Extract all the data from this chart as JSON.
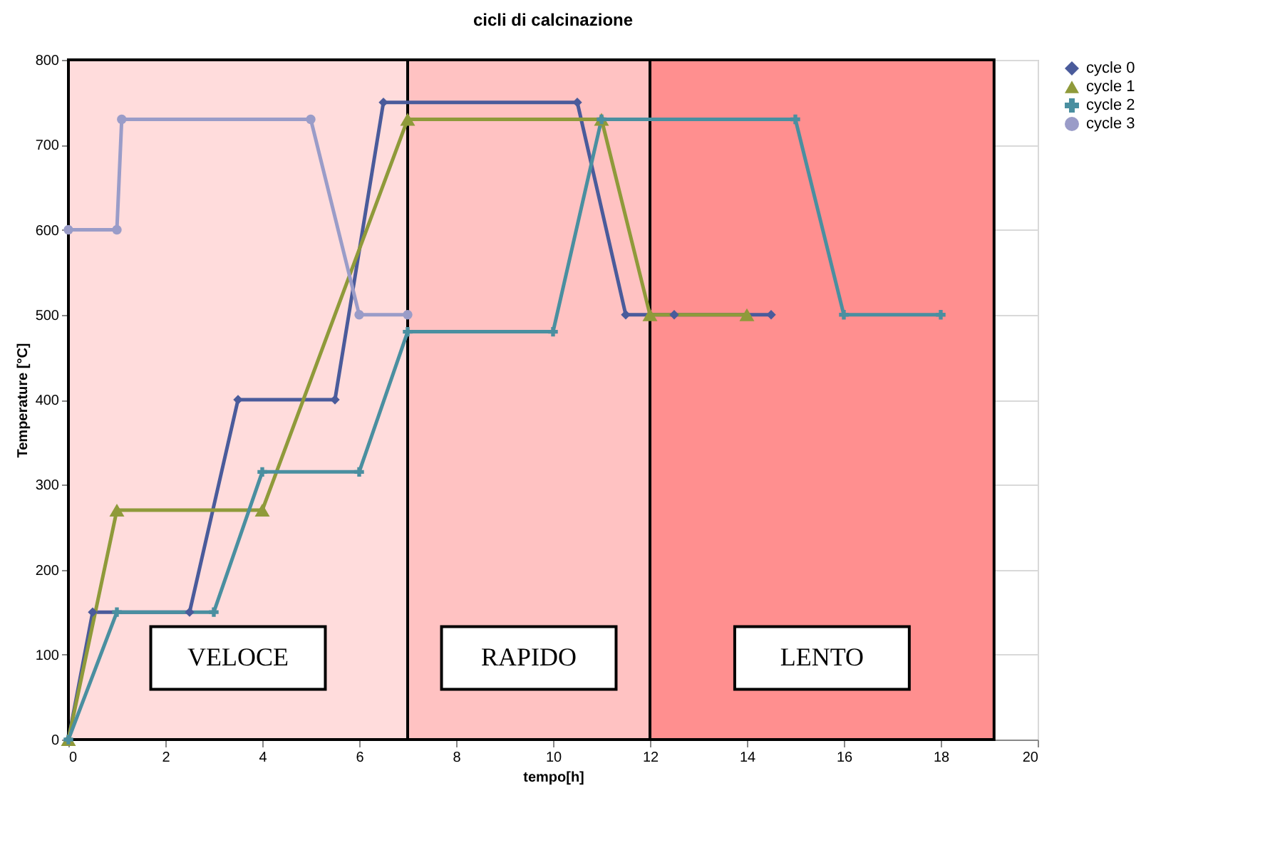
{
  "chart_data": {
    "type": "line",
    "title": "cicli di calcinazione",
    "xlabel": "tempo[h]",
    "ylabel": "Temperature [°C]",
    "xlim": [
      0,
      20
    ],
    "xticks": [
      0,
      2,
      4,
      6,
      8,
      10,
      12,
      14,
      16,
      18,
      20
    ],
    "ylim": [
      0,
      800
    ],
    "yticks": [
      0,
      100,
      200,
      300,
      400,
      500,
      600,
      700,
      800
    ],
    "grid": true,
    "legend": "right",
    "line_style": "solid",
    "series": [
      {
        "name": "cycle 0",
        "color": "#4a5b9b",
        "marker": "diamond",
        "x": [
          0,
          0.5,
          2.5,
          3.5,
          5.5,
          6.5,
          10.5,
          11.5,
          12.5,
          14.5
        ],
        "values": [
          0,
          150,
          150,
          400,
          400,
          750,
          750,
          500,
          500,
          500
        ]
      },
      {
        "name": "cycle 1",
        "color": "#8f9a3a",
        "marker": "triangle",
        "x": [
          0,
          1,
          4,
          7,
          11,
          12,
          14
        ],
        "values": [
          0,
          270,
          270,
          730,
          730,
          500,
          500
        ]
      },
      {
        "name": "cycle 2",
        "color": "#4a8fa0",
        "marker": "cross",
        "x": [
          0,
          1,
          3,
          4,
          6,
          7,
          10,
          11,
          15,
          16,
          18
        ],
        "values": [
          0,
          150,
          150,
          315,
          315,
          480,
          480,
          730,
          730,
          500,
          500
        ]
      },
      {
        "name": "cycle 3",
        "color": "#9a9cc8",
        "marker": "circle",
        "x": [
          0,
          1,
          1.1,
          5,
          6,
          7
        ],
        "values": [
          600,
          600,
          730,
          730,
          500,
          500
        ]
      }
    ],
    "bands": [
      {
        "axis": "x",
        "from": 0,
        "to": 7,
        "label": "VELOCE",
        "color": "#ffdcdc"
      },
      {
        "axis": "x",
        "from": 7,
        "to": 12,
        "label": "RAPIDO",
        "color": "#ffc2c2"
      },
      {
        "axis": "x",
        "from": 12,
        "to": 19.1,
        "label": "LENTO",
        "color": "#ff8f8f"
      }
    ]
  }
}
